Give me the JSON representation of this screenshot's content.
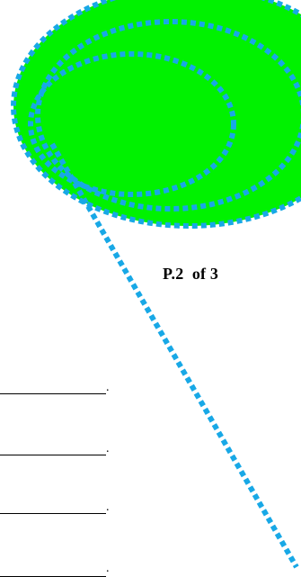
{
  "colors": {
    "fill": "#00f200",
    "dotted_stroke": "#18a8e6",
    "text": "#000000"
  },
  "decoration": {
    "shape": "ellipse-with-dotted-rings",
    "icon": "dotted-ellipse-shape"
  },
  "page_indicator": {
    "label": "P.2  of 3"
  },
  "answer_lines": [
    {
      "end_mark": "."
    },
    {
      "end_mark": "."
    },
    {
      "end_mark": "."
    },
    {
      "end_mark": "."
    }
  ]
}
